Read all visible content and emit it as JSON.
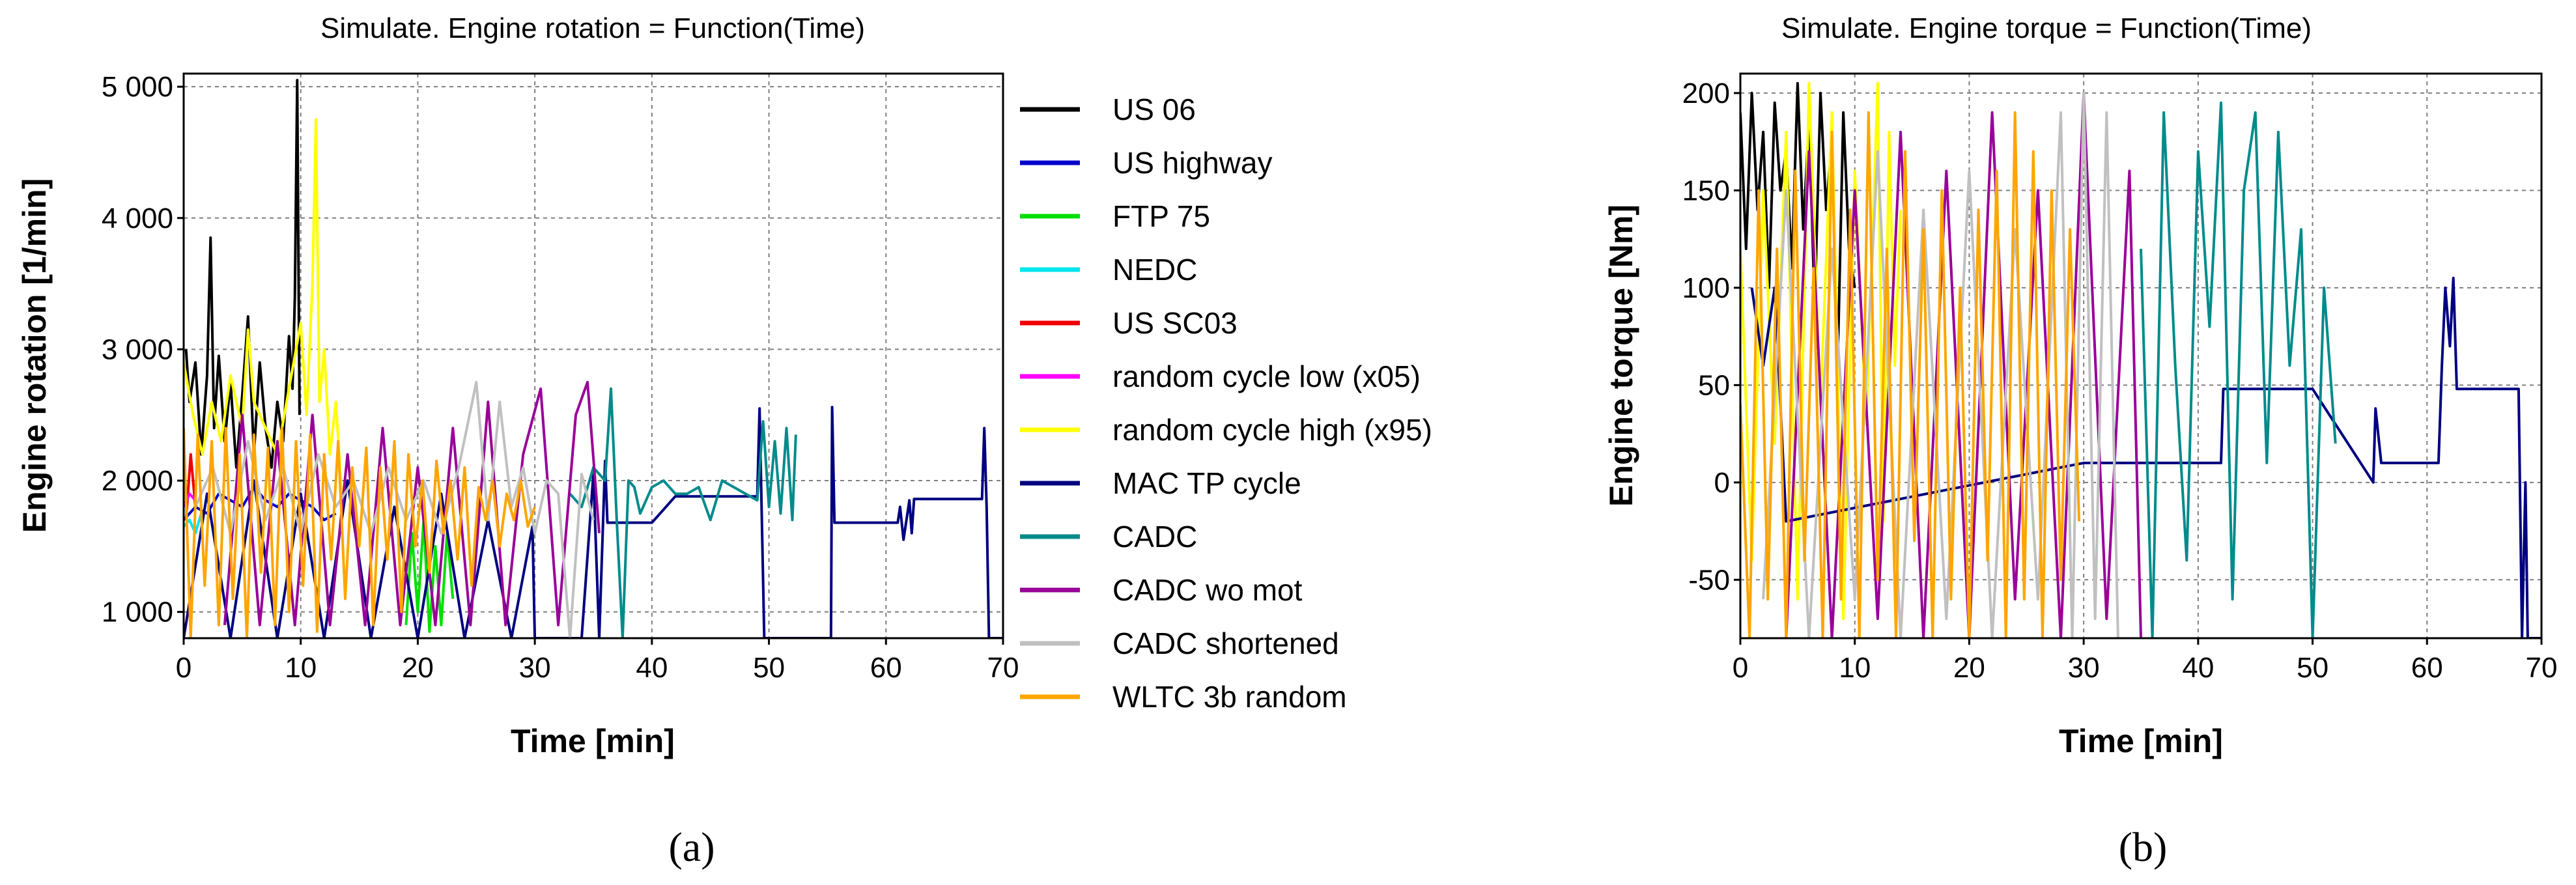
{
  "chart_data": [
    {
      "panel_label": "(a)",
      "type": "line",
      "title": "Simulate. Engine rotation = Function(Time)",
      "xlabel": "Time [min]",
      "ylabel": "Engine rotation [1/min]",
      "xlim": [
        0,
        70
      ],
      "ylim": [
        800,
        5100
      ],
      "x_ticks": [
        0,
        10,
        20,
        30,
        40,
        50,
        60,
        70
      ],
      "x_tick_labels": [
        "0",
        "10",
        "20",
        "30",
        "40",
        "50",
        "60",
        "70"
      ],
      "y_ticks": [
        1000,
        2000,
        3000,
        4000,
        5000
      ],
      "y_tick_labels": [
        "1 000",
        "2 000",
        "3 000",
        "4 000",
        "5 000"
      ],
      "grid": true,
      "legend_position": "right",
      "series": [
        {
          "name": "US 06",
          "color": "#000000",
          "x": [
            0.2,
            0.5,
            1.0,
            1.5,
            2.0,
            2.3,
            2.6,
            3.0,
            3.5,
            4.0,
            4.5,
            5.0,
            5.5,
            6.0,
            6.5,
            7.0,
            7.5,
            8.0,
            8.5,
            9.0,
            9.3,
            9.5,
            9.7,
            9.9
          ],
          "y": [
            3000,
            2600,
            2900,
            2200,
            2800,
            3850,
            2400,
            2950,
            2300,
            2750,
            2100,
            2650,
            3250,
            2200,
            2900,
            2400,
            2100,
            2600,
            2300,
            3100,
            2700,
            3400,
            5050,
            2500
          ]
        },
        {
          "name": "US highway",
          "color": "#0000cc",
          "x": [
            0.0,
            1.0,
            2.0,
            3.0,
            4.0,
            5.0,
            6.0,
            7.0,
            8.0,
            9.0,
            10.0,
            11.0,
            12.0,
            13.0
          ],
          "y": [
            1700,
            1800,
            1750,
            1900,
            1850,
            1800,
            1950,
            1850,
            1800,
            1900,
            1850,
            1800,
            1700,
            1750
          ]
        },
        {
          "name": "FTP 75",
          "color": "#00e000",
          "x": [
            19.0,
            19.5,
            20.0,
            20.5,
            21.0,
            21.5,
            22.0,
            22.5,
            23.0
          ],
          "y": [
            900,
            1600,
            1000,
            1700,
            850,
            1500,
            900,
            1600,
            1100
          ]
        },
        {
          "name": "NEDC",
          "color": "#00e5ee",
          "x": [
            0.0,
            0.5,
            1.0,
            1.5
          ],
          "y": [
            1650,
            1700,
            1600,
            1750
          ]
        },
        {
          "name": "US SC03",
          "color": "#ee0000",
          "x": [
            0.2,
            0.6,
            1.0
          ],
          "y": [
            1700,
            2200,
            1800
          ]
        },
        {
          "name": "random cycle low (x05)",
          "color": "#ff00ff",
          "x": [
            0.0,
            0.5,
            1.0
          ],
          "y": [
            1800,
            1900,
            1850
          ]
        },
        {
          "name": "random cycle high (x95)",
          "color": "#ffff00",
          "x": [
            0.0,
            0.8,
            1.6,
            2.4,
            3.2,
            4.0,
            5.0,
            5.5,
            6.0,
            7.0,
            8.0,
            9.0,
            10.0,
            10.5,
            11.0,
            11.3,
            11.6,
            12.0,
            12.5,
            13.0,
            13.5
          ],
          "y": [
            2900,
            2500,
            2200,
            2600,
            2300,
            2800,
            2400,
            3150,
            2600,
            2400,
            2200,
            2700,
            3200,
            2500,
            3500,
            4750,
            2600,
            3000,
            2200,
            2600,
            1900
          ]
        },
        {
          "name": "MAC TP cycle",
          "color": "#000080",
          "x": [
            0.0,
            2.0,
            4.0,
            6.0,
            8.0,
            10.0,
            12.0,
            14.0,
            16.0,
            18.0,
            20.0,
            22.0,
            24.0,
            26.0,
            28.0,
            29.8,
            30.0,
            34.0,
            35.0,
            35.5,
            36.0,
            36.2,
            40.0,
            42.0,
            44.0,
            44.2,
            49.0,
            49.2,
            49.6,
            50.0,
            55.3,
            55.4,
            55.6,
            56.0,
            61.0,
            61.2,
            61.5,
            62.0,
            62.2,
            62.4,
            63.0,
            68.2,
            68.4,
            68.6,
            68.8,
            70.0
          ],
          "y": [
            800,
            1900,
            800,
            2000,
            800,
            1900,
            800,
            2000,
            800,
            1800,
            800,
            1900,
            800,
            1700,
            800,
            1650,
            800,
            800,
            2050,
            800,
            2150,
            1680,
            1680,
            1880,
            1880,
            1880,
            1880,
            2550,
            800,
            800,
            800,
            2560,
            1680,
            1680,
            1680,
            1800,
            1550,
            1850,
            1600,
            1860,
            1860,
            1860,
            2400,
            1800,
            800,
            800
          ]
        },
        {
          "name": "CADC",
          "color": "#008b8b",
          "x": [
            33.0,
            34.0,
            35.0,
            36.0,
            36.5,
            37.0,
            37.5,
            38.0,
            38.5,
            39.0,
            40.0,
            41.0,
            42.0,
            43.0,
            44.0,
            45.0,
            46.0,
            47.0,
            48.0,
            49.0,
            49.5,
            50.0,
            50.5,
            51.0,
            51.5,
            52.0,
            52.3
          ],
          "y": [
            1900,
            1800,
            2100,
            2000,
            2700,
            1700,
            800,
            2000,
            1950,
            1750,
            1950,
            2000,
            1900,
            1900,
            1950,
            1700,
            2000,
            1950,
            1900,
            1850,
            2450,
            1800,
            2300,
            1750,
            2400,
            1700,
            2350
          ]
        },
        {
          "name": "CADC wo mot",
          "color": "#990099",
          "x": [
            3.5,
            5.0,
            6.5,
            8.0,
            9.5,
            11.0,
            12.5,
            14.0,
            15.5,
            17.0,
            18.5,
            20.0,
            21.5,
            23.0,
            24.5,
            26.0,
            27.5,
            29.0,
            30.5,
            32.0,
            33.5,
            34.5,
            35.5
          ],
          "y": [
            900,
            2500,
            900,
            2300,
            900,
            2500,
            900,
            2200,
            900,
            2400,
            900,
            2100,
            900,
            2400,
            900,
            2600,
            900,
            2200,
            2700,
            900,
            2500,
            2750,
            1600
          ]
        },
        {
          "name": "CADC shortened",
          "color": "#c0c0c0",
          "x": [
            1.0,
            2.5,
            4.0,
            5.5,
            7.0,
            8.5,
            10.0,
            11.5,
            13.0,
            14.5,
            16.0,
            17.5,
            19.0,
            20.5,
            22.0,
            23.5,
            25.0,
            26.0,
            27.0,
            28.0,
            29.0,
            30.0,
            31.0,
            32.0,
            33.0,
            34.0,
            35.0
          ],
          "y": [
            1800,
            2100,
            1600,
            2300,
            1700,
            2100,
            1600,
            2200,
            1800,
            2000,
            1600,
            2100,
            1700,
            2000,
            1600,
            2100,
            2750,
            1700,
            2600,
            1800,
            2100,
            1600,
            2000,
            1900,
            800,
            2050,
            1700
          ]
        },
        {
          "name": "WLTC 3b random",
          "color": "#ffa500",
          "x": [
            0.0,
            0.6,
            1.2,
            1.8,
            2.4,
            3.0,
            3.6,
            4.2,
            4.8,
            5.4,
            6.0,
            6.6,
            7.2,
            7.8,
            8.4,
            9.0,
            9.6,
            10.2,
            10.8,
            11.4,
            12.0,
            12.6,
            13.2,
            13.8,
            14.4,
            15.0,
            15.6,
            16.2,
            16.8,
            17.4,
            18.0,
            18.6,
            19.2,
            19.8,
            20.4,
            21.0,
            21.6,
            22.2,
            22.8,
            23.4,
            24.0,
            24.6,
            25.2,
            25.8,
            26.4,
            27.0,
            27.6,
            28.2,
            28.8,
            29.4,
            30.0
          ],
          "y": [
            2400,
            800,
            2350,
            1200,
            2300,
            900,
            2400,
            1100,
            2200,
            800,
            2350,
            1300,
            2250,
            900,
            2400,
            1000,
            2300,
            1200,
            2350,
            850,
            2200,
            1400,
            2300,
            1100,
            2100,
            1500,
            2250,
            900,
            2100,
            1400,
            2300,
            1000,
            2200,
            1500,
            2000,
            1300,
            2150,
            1600,
            2000,
            1400,
            2100,
            1200,
            1950,
            1700,
            2000,
            1500,
            1900,
            1700,
            2000,
            1650,
            1800
          ]
        }
      ],
      "colors": {
        "axis": "#000000",
        "grid": "#7f7f7f"
      }
    },
    {
      "panel_label": "(b)",
      "type": "line",
      "title": "Simulate. Engine torque = Function(Time)",
      "xlabel": "Time [min]",
      "ylabel": "Engine torque [Nm]",
      "xlim": [
        0,
        70
      ],
      "ylim": [
        -80,
        210
      ],
      "x_ticks": [
        0,
        10,
        20,
        30,
        40,
        50,
        60,
        70
      ],
      "x_tick_labels": [
        "0",
        "10",
        "20",
        "30",
        "40",
        "50",
        "60",
        "70"
      ],
      "y_ticks": [
        -50,
        0,
        50,
        100,
        150,
        200
      ],
      "y_tick_labels": [
        "-50",
        "0",
        "50",
        "100",
        "150",
        "200"
      ],
      "grid": true,
      "series": [
        {
          "name": "US 06",
          "color": "#000000",
          "x": [
            0.0,
            0.5,
            1.0,
            1.5,
            2.0,
            2.5,
            3.0,
            3.5,
            4.0,
            4.5,
            5.0,
            5.5,
            6.0,
            6.5,
            7.0,
            7.5,
            8.0,
            8.5,
            9.0,
            9.5,
            10.0
          ],
          "y": [
            190,
            120,
            200,
            140,
            180,
            100,
            195,
            150,
            170,
            110,
            205,
            130,
            185,
            90,
            200,
            140,
            175,
            60,
            190,
            120,
            100
          ]
        },
        {
          "name": "random cycle high (x95)",
          "color": "#ffff00",
          "x": [
            0.0,
            1.0,
            2.0,
            3.0,
            4.0,
            5.0,
            6.0,
            7.0,
            8.0,
            9.0,
            10.0,
            11.0,
            12.0,
            12.5,
            13.0,
            13.5,
            14.0
          ],
          "y": [
            120,
            -40,
            150,
            20,
            180,
            -60,
            205,
            40,
            190,
            -70,
            160,
            30,
            205,
            -20,
            180,
            60,
            140
          ]
        },
        {
          "name": "MAC TP cycle",
          "color": "#000080",
          "x": [
            1.0,
            2.0,
            3.0,
            4.0,
            30.0,
            34.0,
            35.0,
            35.2,
            42.0,
            42.2,
            50.0,
            55.3,
            55.5,
            56.0,
            61.0,
            61.3,
            61.6,
            62.0,
            62.3,
            62.6,
            63.0,
            68.0,
            68.3,
            68.6,
            68.8,
            70.0
          ],
          "y": [
            100,
            60,
            100,
            -20,
            10,
            10,
            10,
            10,
            10,
            48,
            48,
            0,
            38,
            10,
            10,
            60,
            100,
            70,
            105,
            48,
            48,
            48,
            -80,
            0,
            -80,
            -80
          ]
        },
        {
          "name": "CADC",
          "color": "#008b8b",
          "x": [
            35.0,
            36.0,
            37.0,
            38.0,
            39.0,
            40.0,
            41.0,
            42.0,
            43.0,
            44.0,
            45.0,
            46.0,
            47.0,
            48.0,
            49.0,
            50.0,
            51.0,
            52.0
          ],
          "y": [
            120,
            -80,
            190,
            60,
            -40,
            170,
            80,
            195,
            -60,
            150,
            190,
            10,
            180,
            60,
            130,
            -80,
            100,
            20
          ]
        },
        {
          "name": "CADC wo mot",
          "color": "#990099",
          "x": [
            4.0,
            6.0,
            8.0,
            10.0,
            12.0,
            14.0,
            16.0,
            18.0,
            20.0,
            22.0,
            24.0,
            26.0,
            28.0,
            30.0,
            32.0,
            34.0,
            35.0
          ],
          "y": [
            -80,
            170,
            -80,
            150,
            -70,
            180,
            -80,
            160,
            -80,
            190,
            -60,
            150,
            -80,
            200,
            -70,
            160,
            -80
          ]
        },
        {
          "name": "CADC shortened",
          "color": "#c0c0c0",
          "x": [
            2.0,
            4.0,
            6.0,
            8.0,
            10.0,
            12.0,
            14.0,
            16.0,
            18.0,
            20.0,
            22.0,
            24.0,
            26.0,
            28.0,
            29.0,
            30.0,
            31.0,
            32.0,
            33.0
          ],
          "y": [
            -60,
            150,
            -80,
            120,
            -60,
            170,
            -80,
            140,
            -70,
            160,
            -80,
            130,
            -60,
            190,
            -80,
            200,
            -70,
            190,
            -80
          ]
        },
        {
          "name": "WLTC 3b random",
          "color": "#ffa500",
          "x": [
            0.0,
            0.8,
            1.6,
            2.4,
            3.2,
            4.0,
            4.8,
            5.6,
            6.4,
            7.2,
            8.0,
            8.8,
            9.6,
            10.4,
            11.2,
            12.0,
            12.8,
            13.6,
            14.4,
            15.2,
            16.0,
            16.8,
            17.6,
            18.4,
            19.2,
            20.0,
            20.8,
            21.6,
            22.4,
            23.2,
            24.0,
            24.8,
            25.6,
            26.4,
            27.2,
            28.0,
            28.8,
            29.6
          ],
          "y": [
            40,
            -80,
            150,
            -60,
            120,
            -80,
            160,
            -40,
            110,
            -80,
            180,
            -60,
            140,
            -80,
            190,
            -50,
            120,
            -80,
            170,
            -30,
            130,
            -80,
            150,
            -60,
            100,
            -80,
            140,
            -40,
            160,
            -80,
            190,
            -60,
            170,
            -80,
            150,
            -50,
            130,
            -20
          ]
        }
      ],
      "colors": {
        "axis": "#000000",
        "grid": "#7f7f7f"
      }
    }
  ]
}
